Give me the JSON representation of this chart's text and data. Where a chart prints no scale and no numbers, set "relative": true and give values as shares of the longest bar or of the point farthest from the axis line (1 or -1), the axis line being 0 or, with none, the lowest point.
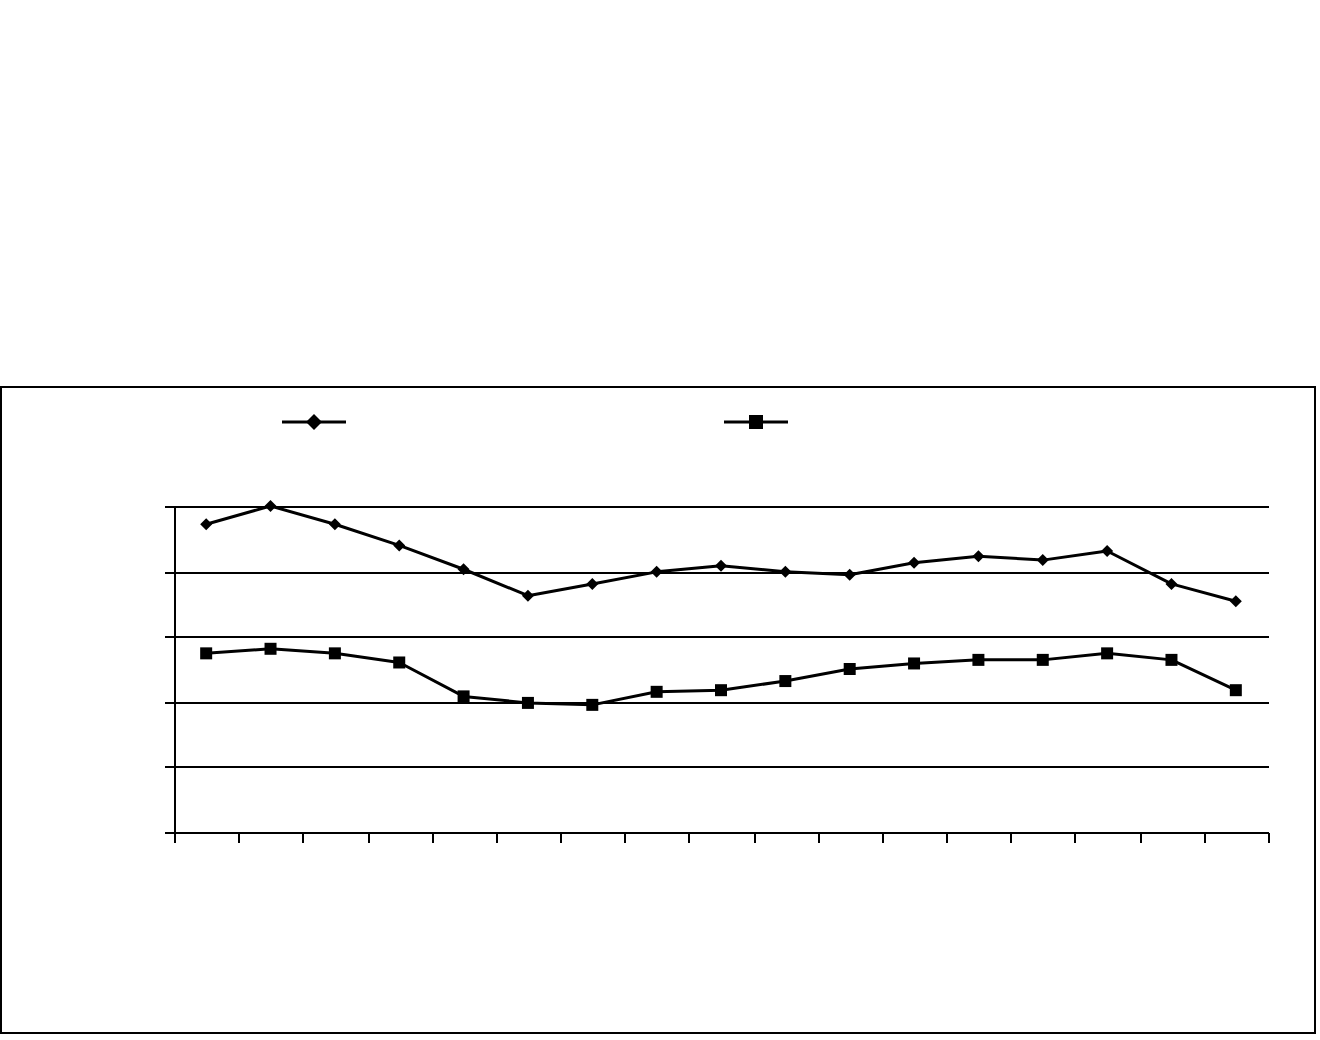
{
  "chart_data": {
    "type": "line",
    "relative": true,
    "grid": "y",
    "categories": [
      null,
      null,
      null,
      null,
      null,
      null,
      null,
      null,
      null,
      null,
      null,
      null,
      null,
      null,
      null,
      null,
      null
    ],
    "series": [
      {
        "color": "#000000",
        "marker": "diamond",
        "values": [
          0.944,
          1,
          0.944,
          0.879,
          0.806,
          0.725,
          0.761,
          0.798,
          0.817,
          0.798,
          0.789,
          0.826,
          0.846,
          0.834,
          0.862,
          0.761,
          0.708
        ]
      },
      {
        "color": "#000000",
        "marker": "square",
        "values": [
          0.548,
          0.562,
          0.548,
          0.52,
          0.416,
          0.396,
          0.39,
          0.43,
          0.435,
          0.463,
          0.5,
          0.517,
          0.528,
          0.528,
          0.548,
          0.528,
          0.435
        ]
      }
    ]
  }
}
